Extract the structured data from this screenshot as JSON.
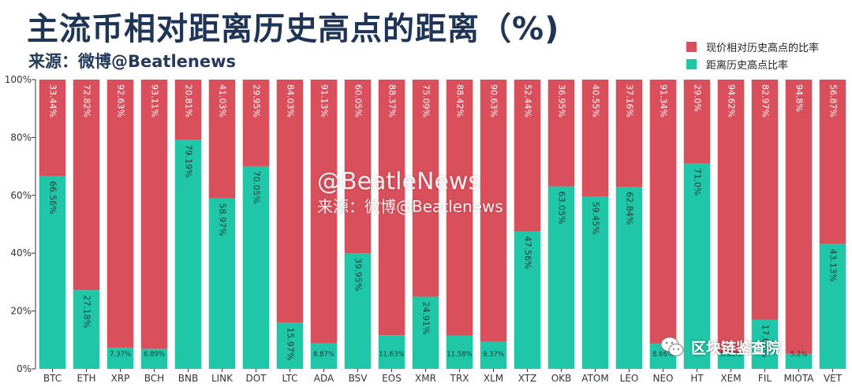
{
  "title": "主流币相对距离历史高点的距离（%)",
  "subtitle": "来源：微博@Beatlenews",
  "watermark": {
    "line1": "@BeatleNews",
    "line2": "来源：微博@Beatlenews"
  },
  "brand": {
    "label": "区块链鉴查院",
    "icon": "wechat-icon"
  },
  "chart_data": {
    "type": "bar",
    "stacked": true,
    "categories": [
      "BTC",
      "ETH",
      "XRP",
      "BCH",
      "BNB",
      "LINK",
      "DOT",
      "LTC",
      "ADA",
      "BSV",
      "EOS",
      "XMR",
      "TRX",
      "XLM",
      "XTZ",
      "OKB",
      "ATOM",
      "LEO",
      "NEO",
      "HT",
      "XEM",
      "FIL",
      "MIOTA",
      "VET"
    ],
    "series": [
      {
        "name": "距离历史高点比率",
        "color": "#1fc6a8",
        "values": [
          66.56,
          27.18,
          7.37,
          6.89,
          79.19,
          58.97,
          70.05,
          15.97,
          8.87,
          39.95,
          11.63,
          24.91,
          11.58,
          9.37,
          47.56,
          63.05,
          59.45,
          62.84,
          8.66,
          71.0,
          5.38,
          17.03,
          5.2,
          43.13
        ],
        "labels": [
          "66.56%",
          "27.18%",
          "7.37%",
          "6.89%",
          "79.19%",
          "58.97%",
          "70.05%",
          "15.97%",
          "8.87%",
          "39.95%",
          "11.63%",
          "24.91%",
          "11.58%",
          "9.37%",
          "47.56%",
          "63.05%",
          "59.45%",
          "62.84%",
          "8.66%",
          "71.0%",
          "5.38%",
          "17.03%",
          "5.2%",
          "43.13%"
        ]
      },
      {
        "name": "现价相对历史高点的比率",
        "color": "#d9505c",
        "values": [
          33.44,
          72.82,
          92.63,
          93.11,
          20.81,
          41.03,
          29.95,
          84.03,
          91.13,
          60.05,
          88.37,
          75.09,
          88.42,
          90.63,
          52.44,
          36.95,
          40.55,
          37.16,
          91.34,
          29.0,
          94.62,
          82.97,
          94.8,
          56.87
        ],
        "labels": [
          "33.44%",
          "72.82%",
          "92.63%",
          "93.11%",
          "20.81%",
          "41.03%",
          "29.95%",
          "84.03%",
          "91.13%",
          "60.05%",
          "88.37%",
          "75.09%",
          "88.42%",
          "90.63%",
          "52.44%",
          "36.95%",
          "40.55%",
          "37.16%",
          "91.34%",
          "29.0%",
          "94.62%",
          "82.97%",
          "94.8%",
          "56.87%"
        ]
      }
    ],
    "legend_order": [
      1,
      0
    ],
    "legend_position": "top-right",
    "ylim": [
      0,
      100
    ],
    "yticks": [
      "0%",
      "20%",
      "40%",
      "60%",
      "80%",
      "100%"
    ],
    "ytick_values": [
      0,
      20,
      40,
      60,
      80,
      100
    ],
    "xlabel": "",
    "ylabel": "",
    "grid": false
  }
}
